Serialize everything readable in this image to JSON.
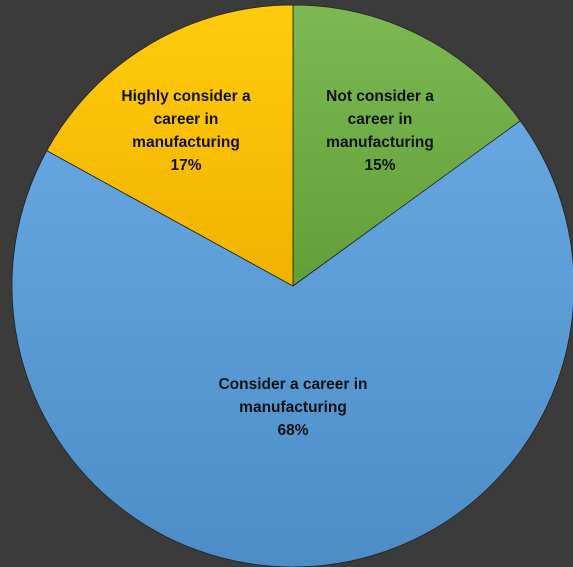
{
  "chart_data": {
    "type": "pie",
    "title": "",
    "legend": "none",
    "slices": [
      {
        "label_lines": [
          "Not consider a",
          "career in",
          "manufacturing"
        ],
        "value": 15,
        "value_label": "15%",
        "color": "#70ad47"
      },
      {
        "label_lines": [
          "Consider a career in",
          "manufacturing"
        ],
        "value": 68,
        "value_label": "68%",
        "color": "#5b9bd5"
      },
      {
        "label_lines": [
          "Highly consider a",
          "career in",
          "manufacturing"
        ],
        "value": 17,
        "value_label": "17%",
        "color": "#ffc000"
      }
    ]
  },
  "colors": {
    "background": "#3b3b3b",
    "border": "#222222"
  }
}
